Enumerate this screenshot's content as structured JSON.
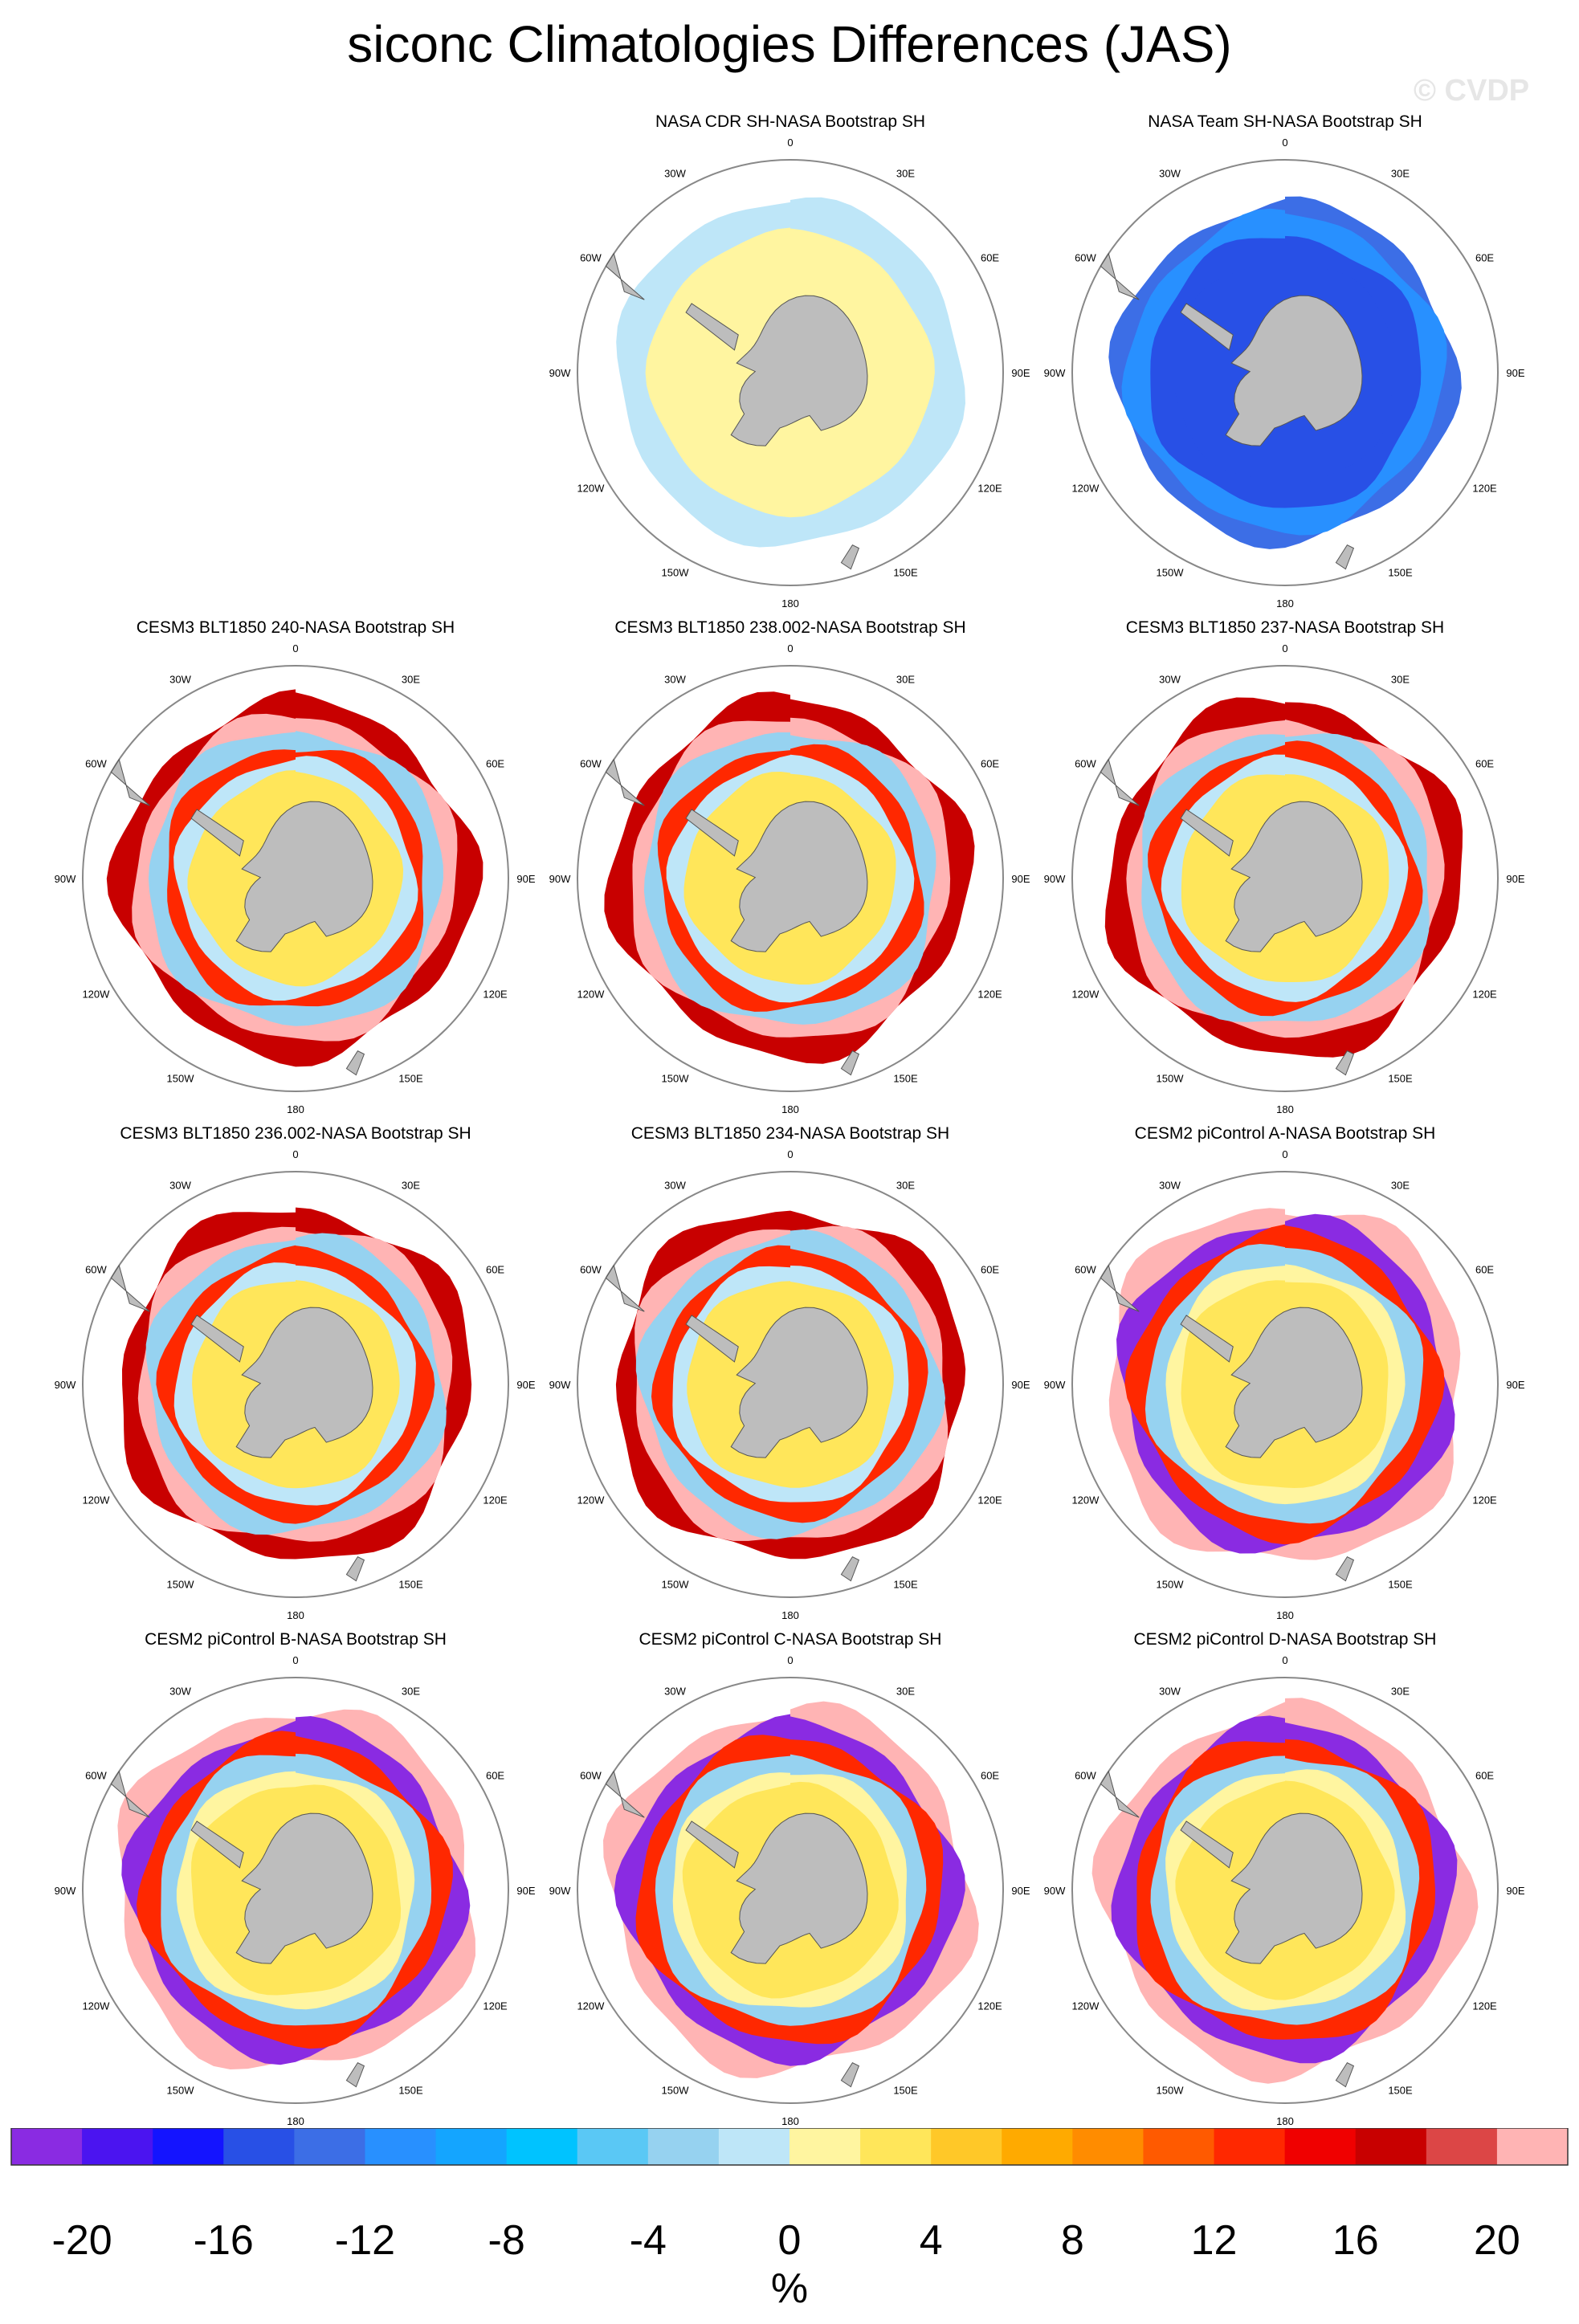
{
  "title": "siconc Climatologies Differences (JAS)",
  "watermark": "© CVDP",
  "lon_labels": [
    "0",
    "30E",
    "60E",
    "90E",
    "120E",
    "150E",
    "180",
    "150W",
    "120W",
    "90W",
    "60W",
    "30W"
  ],
  "panels": [
    {
      "title": "NASA CDR SH-NASA Bootstrap SH",
      "pattern": "cdr"
    },
    {
      "title": "NASA Team SH-NASA Bootstrap SH",
      "pattern": "team"
    },
    {
      "title": "CESM3 BLT1850 240-NASA Bootstrap SH",
      "pattern": "cesm3"
    },
    {
      "title": "CESM3 BLT1850 238.002-NASA Bootstrap SH",
      "pattern": "cesm3"
    },
    {
      "title": "CESM3 BLT1850 237-NASA Bootstrap SH",
      "pattern": "cesm3"
    },
    {
      "title": "CESM3 BLT1850 236.002-NASA Bootstrap SH",
      "pattern": "cesm3"
    },
    {
      "title": "CESM3 BLT1850 234-NASA Bootstrap SH",
      "pattern": "cesm3"
    },
    {
      "title": "CESM2 piControl A-NASA Bootstrap SH",
      "pattern": "cesm2"
    },
    {
      "title": "CESM2 piControl B-NASA Bootstrap SH",
      "pattern": "cesm2"
    },
    {
      "title": "CESM2 piControl C-NASA Bootstrap SH",
      "pattern": "cesm2"
    },
    {
      "title": "CESM2 piControl D-NASA Bootstrap SH",
      "pattern": "cesm2"
    }
  ],
  "colorbar": {
    "units": "%",
    "tick_labels": [
      "-20",
      "-16",
      "-12",
      "-8",
      "-4",
      "0",
      "4",
      "8",
      "12",
      "16",
      "20"
    ],
    "colors": [
      "#8a2be2",
      "#4b14f0",
      "#1414ff",
      "#2850e6",
      "#3c6ee6",
      "#2890ff",
      "#14a5ff",
      "#00c3ff",
      "#5ac8f5",
      "#96d2f0",
      "#bee6f8",
      "#fff5a0",
      "#ffe65a",
      "#ffc828",
      "#ffaa00",
      "#ff8c00",
      "#ff5a00",
      "#ff2800",
      "#f00000",
      "#c80000",
      "#dc4646",
      "#ffb4b4"
    ]
  },
  "chart_data": {
    "type": "heatmap",
    "title": "siconc Climatologies Differences (JAS)",
    "projection": "south polar stereographic",
    "value_range": [
      -20,
      20
    ],
    "contour_interval": 2,
    "units": "%",
    "panels": [
      "NASA CDR SH-NASA Bootstrap SH",
      "NASA Team SH-NASA Bootstrap SH",
      "CESM3 BLT1850 240-NASA Bootstrap SH",
      "CESM3 BLT1850 238.002-NASA Bootstrap SH",
      "CESM3 BLT1850 237-NASA Bootstrap SH",
      "CESM3 BLT1850 236.002-NASA Bootstrap SH",
      "CESM3 BLT1850 234-NASA Bootstrap SH",
      "CESM2 piControl A-NASA Bootstrap SH",
      "CESM2 piControl B-NASA Bootstrap SH",
      "CESM2 piControl C-NASA Bootstrap SH",
      "CESM2 piControl D-NASA Bootstrap SH"
    ]
  }
}
